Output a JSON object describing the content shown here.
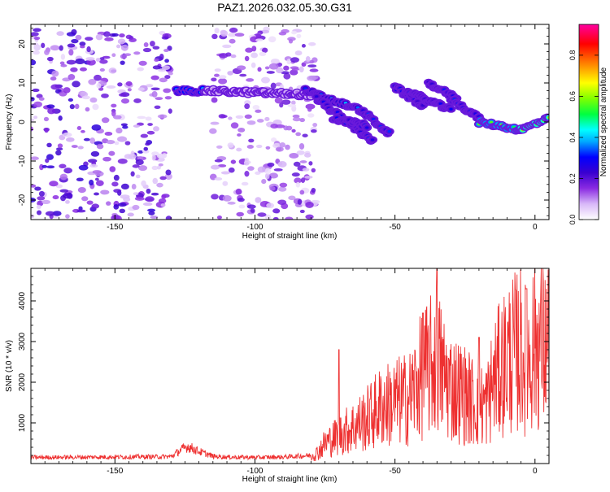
{
  "title": "PAZ1.2026.032.05.30.G31",
  "chart_data": [
    {
      "type": "heatmap",
      "xlabel": "Height of straight line (km)",
      "ylabel": "Frequency (Hz)",
      "xlim": [
        -180,
        5
      ],
      "ylim": [
        -25,
        25
      ],
      "xticks": [
        -150,
        -100,
        -50,
        0
      ],
      "yticks": [
        -20,
        -10,
        0,
        10,
        20
      ],
      "colorbar": {
        "label": "Normalized spectral amplitude",
        "range": [
          0,
          0.95
        ],
        "ticks": [
          0.0,
          0.2,
          0.4,
          0.6,
          0.8
        ],
        "colormap": [
          "#ffffff",
          "#d8b8f8",
          "#8a2be2",
          "#3a00d0",
          "#0000ff",
          "#00aaff",
          "#00ffff",
          "#00ff40",
          "#80ff00",
          "#ffff00",
          "#ff8000",
          "#ff0000",
          "#ff00a0"
        ]
      },
      "noise_regions": [
        {
          "x": [
            -180,
            -130
          ],
          "y": [
            -25,
            24
          ],
          "level": 0.1
        },
        {
          "x": [
            -115,
            -78
          ],
          "y": [
            -25,
            24
          ],
          "level": 0.08
        }
      ],
      "features": [
        {
          "x": [
            -128,
            -118
          ],
          "y": [
            8,
            8
          ],
          "amp": 0.45
        },
        {
          "x": [
            -118,
            -80
          ],
          "y": [
            8,
            7
          ],
          "amp": 0.12
        },
        {
          "x": [
            -82,
            -62
          ],
          "y": [
            8,
            3
          ],
          "amp": 0.35
        },
        {
          "x": [
            -78,
            -58
          ],
          "y": [
            6,
            -5
          ],
          "amp": 0.3
        },
        {
          "x": [
            -72,
            -60
          ],
          "y": [
            1,
            -1
          ],
          "amp": 0.3
        },
        {
          "x": [
            -62,
            -52
          ],
          "y": [
            3,
            -3
          ],
          "amp": 0.3
        },
        {
          "x": [
            -50,
            -40
          ],
          "y": [
            9,
            4
          ],
          "amp": 0.3
        },
        {
          "x": [
            -46,
            -30
          ],
          "y": [
            8,
            3
          ],
          "amp": 0.3
        },
        {
          "x": [
            -38,
            -28
          ],
          "y": [
            10,
            6
          ],
          "amp": 0.3
        },
        {
          "x": [
            -30,
            -20
          ],
          "y": [
            6,
            1
          ],
          "amp": 0.3
        },
        {
          "x": [
            -20,
            -5
          ],
          "y": [
            0,
            -2
          ],
          "amp": 0.55
        },
        {
          "x": [
            -5,
            5
          ],
          "y": [
            -2,
            1
          ],
          "amp": 0.7
        }
      ]
    },
    {
      "type": "line",
      "xlabel": "Height of straight line (km)",
      "ylabel": "SNR (10 * v/v)",
      "xlim": [
        -180,
        5
      ],
      "ylim": [
        0,
        4800
      ],
      "xticks": [
        -150,
        -100,
        -50,
        0
      ],
      "yticks": [
        1000,
        2000,
        3000,
        4000
      ],
      "color": "#ee3030",
      "profile_x": [
        -180,
        -130,
        -126,
        -124,
        -120,
        -115,
        -110,
        -100,
        -90,
        -80,
        -78,
        -75,
        -70,
        -65,
        -60,
        -55,
        -50,
        -45,
        -40,
        -37,
        -35,
        -33,
        -30,
        -25,
        -20,
        -17,
        -15,
        -10,
        -5,
        -3,
        0,
        5
      ],
      "profile_y": [
        150,
        170,
        350,
        420,
        300,
        180,
        160,
        150,
        160,
        200,
        250,
        500,
        700,
        900,
        1100,
        1400,
        1500,
        1600,
        2200,
        2400,
        2600,
        2200,
        1900,
        1700,
        1400,
        1500,
        2000,
        2600,
        2800,
        2500,
        3000,
        2900
      ],
      "peaks": [
        {
          "x": -35,
          "y": 4800
        },
        {
          "x": -40,
          "y": 3700
        },
        {
          "x": -3,
          "y": 4300
        },
        {
          "x": -70,
          "y": 2800
        },
        {
          "x": -20,
          "y": 3100
        }
      ]
    }
  ]
}
